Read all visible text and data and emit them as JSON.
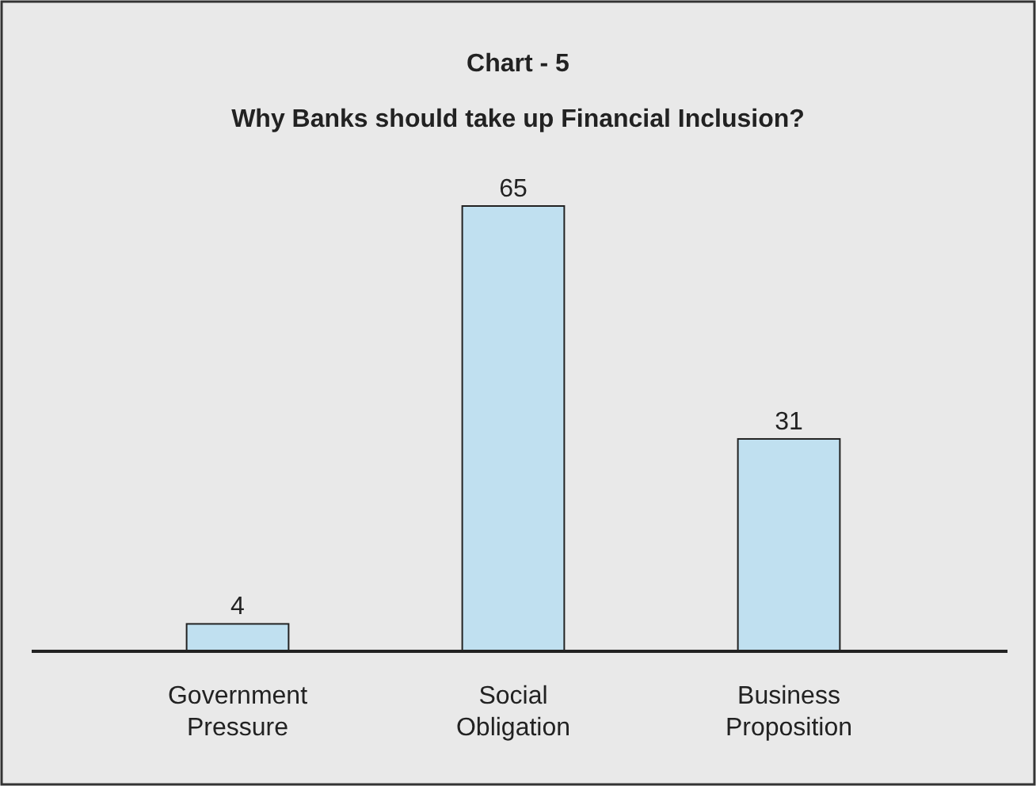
{
  "chart_data": {
    "type": "bar",
    "title": "Chart - 5",
    "subtitle": "Why Banks should take up Financial Inclusion?",
    "categories": [
      "Government Pressure",
      "Social Obligation",
      "Business Proposition"
    ],
    "values": [
      4,
      65,
      31
    ],
    "color": "#c0e0f0",
    "data_labels": true
  }
}
